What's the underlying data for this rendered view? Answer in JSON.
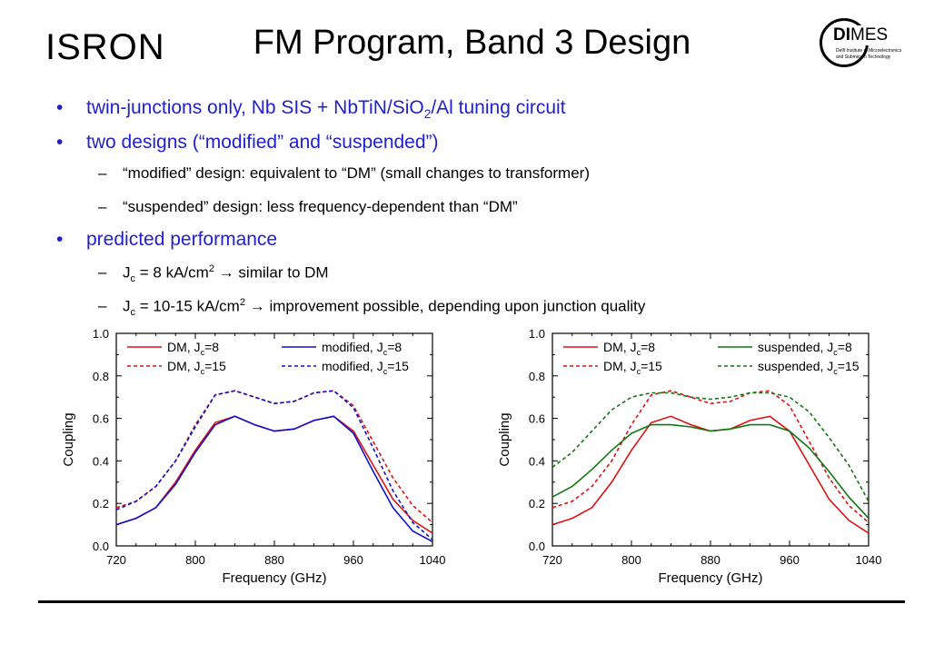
{
  "header": {
    "title": "FM Program, Band 3 Design",
    "logo_left": "ISRON",
    "logo_right": {
      "word_bold": "DI",
      "word_rest": "MES",
      "sub1": "Delft Institute of Microelectronics",
      "sub2": "and Submicron Technology"
    }
  },
  "bullets": [
    {
      "level": 1,
      "pre": "twin-junctions only, Nb SIS + NbTiN/SiO",
      "sub": "2",
      "post": "/Al tuning circuit"
    },
    {
      "level": 1,
      "pre": "two designs (“modified” and “suspended”)"
    },
    {
      "level": 2,
      "pre": "“modified” design:  equivalent to “DM” (small changes to transformer)"
    },
    {
      "level": 2,
      "pre": "“suspended” design:  less frequency-dependent than “DM”"
    },
    {
      "level": 1,
      "pre": "predicted performance"
    },
    {
      "level": 2,
      "pre": "J",
      "sub": "c",
      "mid": " = 8 kA/cm",
      "sup": "2",
      "post": " → similar to DM"
    },
    {
      "level": 2,
      "pre": "J",
      "sub": "c",
      "mid": " = 10-15 kA/cm",
      "sup": "2",
      "post": " → improvement possible, depending upon junction quality"
    }
  ],
  "chart_data": [
    {
      "type": "line",
      "xlabel": "Frequency (GHz)",
      "ylabel": "Coupling",
      "xlim": [
        720,
        1040
      ],
      "ylim": [
        0.0,
        1.0
      ],
      "xticks": [
        720,
        800,
        880,
        960,
        1040
      ],
      "yticks": [
        0.0,
        0.2,
        0.4,
        0.6,
        0.8,
        1.0
      ],
      "grid": false,
      "legend": "top",
      "x": [
        720,
        740,
        760,
        780,
        800,
        820,
        840,
        860,
        880,
        900,
        920,
        940,
        960,
        980,
        1000,
        1020,
        1040
      ],
      "series": [
        {
          "name": "DM, J_c=8",
          "color": "#dd1111",
          "dash": false,
          "values": [
            0.1,
            0.13,
            0.18,
            0.3,
            0.45,
            0.58,
            0.61,
            0.57,
            0.54,
            0.55,
            0.59,
            0.61,
            0.54,
            0.38,
            0.22,
            0.12,
            0.06
          ]
        },
        {
          "name": "DM, J_c=15",
          "color": "#dd1111",
          "dash": true,
          "values": [
            0.18,
            0.21,
            0.28,
            0.4,
            0.57,
            0.71,
            0.73,
            0.7,
            0.67,
            0.68,
            0.72,
            0.73,
            0.66,
            0.49,
            0.32,
            0.19,
            0.11
          ]
        },
        {
          "name": "modified, J_c=8",
          "color": "#1111cc",
          "dash": false,
          "values": [
            0.1,
            0.13,
            0.18,
            0.29,
            0.44,
            0.57,
            0.61,
            0.57,
            0.54,
            0.55,
            0.59,
            0.61,
            0.53,
            0.35,
            0.18,
            0.07,
            0.02
          ]
        },
        {
          "name": "modified, J_c=15",
          "color": "#1111cc",
          "dash": true,
          "values": [
            0.17,
            0.21,
            0.28,
            0.4,
            0.56,
            0.71,
            0.73,
            0.7,
            0.67,
            0.68,
            0.72,
            0.73,
            0.65,
            0.46,
            0.26,
            0.11,
            0.03
          ]
        }
      ]
    },
    {
      "type": "line",
      "xlabel": "Frequency (GHz)",
      "ylabel": "Coupling",
      "xlim": [
        720,
        1040
      ],
      "ylim": [
        0.0,
        1.0
      ],
      "xticks": [
        720,
        800,
        880,
        960,
        1040
      ],
      "yticks": [
        0.0,
        0.2,
        0.4,
        0.6,
        0.8,
        1.0
      ],
      "grid": false,
      "legend": "top",
      "x": [
        720,
        740,
        760,
        780,
        800,
        820,
        840,
        860,
        880,
        900,
        920,
        940,
        960,
        980,
        1000,
        1020,
        1040
      ],
      "series": [
        {
          "name": "DM, J_c=8",
          "color": "#dd1111",
          "dash": false,
          "values": [
            0.1,
            0.13,
            0.18,
            0.3,
            0.45,
            0.58,
            0.61,
            0.57,
            0.54,
            0.55,
            0.59,
            0.61,
            0.54,
            0.38,
            0.22,
            0.12,
            0.06
          ]
        },
        {
          "name": "DM, J_c=15",
          "color": "#dd1111",
          "dash": true,
          "values": [
            0.18,
            0.21,
            0.28,
            0.4,
            0.57,
            0.71,
            0.73,
            0.7,
            0.67,
            0.68,
            0.72,
            0.73,
            0.66,
            0.49,
            0.32,
            0.19,
            0.11
          ]
        },
        {
          "name": "suspended, J_c=8",
          "color": "#117711",
          "dash": false,
          "values": [
            0.23,
            0.28,
            0.36,
            0.45,
            0.53,
            0.57,
            0.57,
            0.56,
            0.54,
            0.55,
            0.57,
            0.57,
            0.54,
            0.46,
            0.35,
            0.23,
            0.13
          ]
        },
        {
          "name": "suspended, J_c=15",
          "color": "#117711",
          "dash": true,
          "values": [
            0.37,
            0.44,
            0.54,
            0.64,
            0.7,
            0.72,
            0.72,
            0.7,
            0.69,
            0.7,
            0.72,
            0.72,
            0.7,
            0.63,
            0.51,
            0.38,
            0.21
          ]
        }
      ]
    }
  ]
}
